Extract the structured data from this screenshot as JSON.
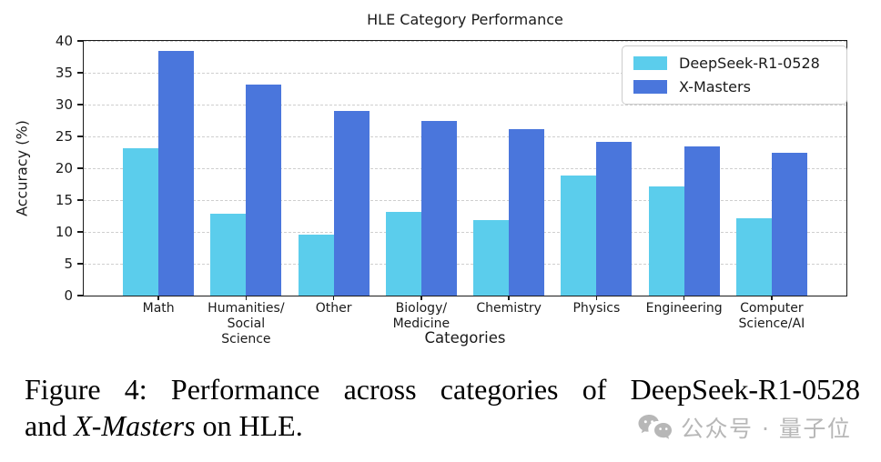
{
  "chart_data": {
    "type": "bar",
    "title": "HLE Category Performance",
    "xlabel": "Categories",
    "ylabel": "Accuracy (%)",
    "ylim": [
      0,
      40
    ],
    "yticks": [
      0,
      5,
      10,
      15,
      20,
      25,
      30,
      35,
      40
    ],
    "grid": "horizontal-dashed",
    "legend_position": "upper-right",
    "categories": [
      "Math",
      "Humanities/\nSocial Science",
      "Other",
      "Biology/\nMedicine",
      "Chemistry",
      "Physics",
      "Engineering",
      "Computer\nScience/AI"
    ],
    "series": [
      {
        "name": "DeepSeek-R1-0528",
        "color": "#5BCDEC",
        "values": [
          23.2,
          12.9,
          9.6,
          13.1,
          11.8,
          18.8,
          17.2,
          12.1
        ]
      },
      {
        "name": "X-Masters",
        "color": "#4A76DC",
        "values": [
          38.4,
          33.1,
          29.0,
          27.5,
          26.1,
          24.1,
          23.4,
          22.4
        ]
      }
    ]
  },
  "caption": {
    "line1": "Figure 4:  Performance across categories of DeepSeek-R1-0528",
    "line2_pre": "and ",
    "line2_italic": "X-Masters",
    "line2_post": " on HLE."
  },
  "watermark": {
    "icon": "wechat-icon",
    "text": "公众号 · 量子位"
  }
}
